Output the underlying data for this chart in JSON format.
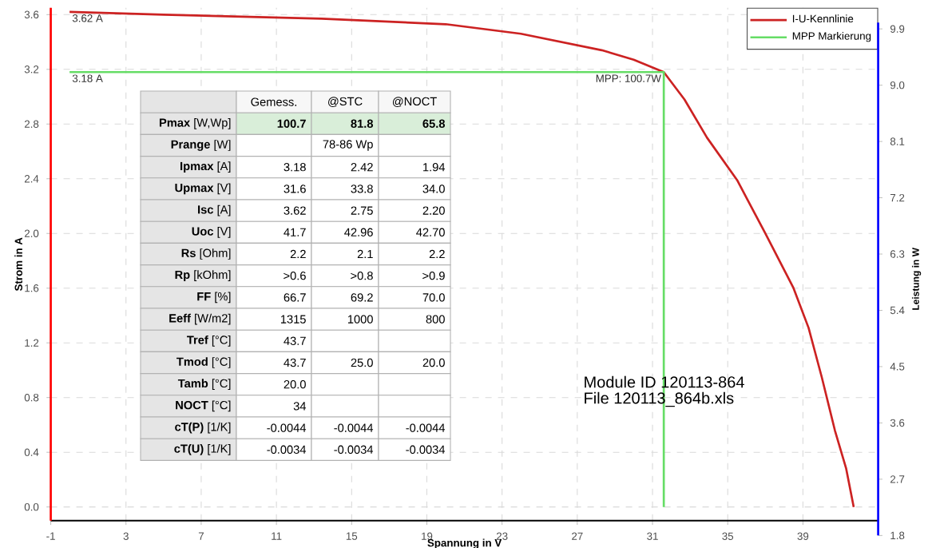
{
  "chart_data": {
    "type": "line",
    "xlabel": "Spannung in V",
    "ylabel": "Strom in A",
    "y2label": "Leistung in W",
    "xlim": [
      -1,
      43
    ],
    "xticks": [
      -1,
      3,
      7,
      11,
      15,
      19,
      23,
      27,
      31,
      35,
      39
    ],
    "ylim": [
      -0.1,
      3.65
    ],
    "yticks": [
      {
        "value": 0,
        "label": "0.0"
      },
      0.4,
      0.8,
      1.2,
      1.6,
      {
        "value": 2,
        "label": "2.0"
      },
      2.4,
      2.8,
      3.2,
      3.6
    ],
    "y2lim": [
      1.8,
      10.0
    ],
    "y2ticks": [
      1.8,
      2.7,
      3.6,
      4.5,
      5.4,
      6.3,
      7.2,
      8.1,
      {
        "value": 9,
        "label": "9.0"
      },
      9.9
    ],
    "grid": true,
    "legend": "top right",
    "series": [
      {
        "name": "I-U-Kennlinie",
        "color": "#cc2222",
        "x": [
          0,
          5,
          13.4,
          20,
          24,
          28.3,
          30,
          31.6,
          32.7,
          33.9,
          35.5,
          37,
          38.5,
          39.3,
          40,
          40.7,
          41.3,
          41.7
        ],
        "values": [
          3.62,
          3.6,
          3.57,
          3.53,
          3.46,
          3.34,
          3.27,
          3.18,
          2.98,
          2.7,
          2.39,
          2.0,
          1.6,
          1.31,
          0.95,
          0.56,
          0.28,
          0.0
        ]
      },
      {
        "name": "MPP Markierung",
        "color": "#66dd66",
        "x": [
          0,
          31.6,
          31.6
        ],
        "values": [
          3.18,
          3.18,
          0
        ]
      }
    ],
    "annotations": [
      "3.62 A",
      "3.18 A",
      {
        "text": "MPP: 100.7W",
        "x": 31.6,
        "y": 3.18
      },
      "Module ID 120113-864",
      "File 120113_864b.xls",
      null,
      "Gemess.",
      "@STC",
      "@NOCT",
      "**Pmax** [W,Wp]",
      "100.7",
      "81.8",
      "65.8",
      "**Prange** [W]",
      null,
      "78-86 Wp",
      null,
      "**Ipmax** [A]",
      "3.18",
      "2.42",
      "1.94",
      "**Upmax** [V]",
      "31.6",
      "33.8",
      "34.0",
      "**Isc** [A]",
      "3.62",
      "2.75",
      "2.20",
      "**Uoc** [V]",
      "41.7",
      "42.96",
      "42.70",
      "**Rs** [Ohm]",
      "2.2",
      "2.1",
      "2.2",
      "**Rp** [kOhm]",
      ">0.6",
      ">0.8",
      ">0.9",
      "**FF** [%]",
      "66.7",
      "69.2",
      "70.0",
      "**Eeff** [W/m2]",
      "1315",
      "1000",
      "800",
      "**Tref** [°C]",
      "43.7",
      null,
      null,
      "**Tmod** [°C]",
      "43.7",
      "25.0",
      "20.0",
      "**Tamb** [°C]",
      "20.0",
      null,
      null,
      "**NOCT** [°C]",
      "34",
      null,
      null,
      "**cT(P)** [1/K]",
      "-0.0044",
      "-0.0044",
      "-0.0044",
      "**cT(U)** [1/K]",
      "-0.0034",
      "-0.0034",
      "-0.0034"
    ]
  }
}
